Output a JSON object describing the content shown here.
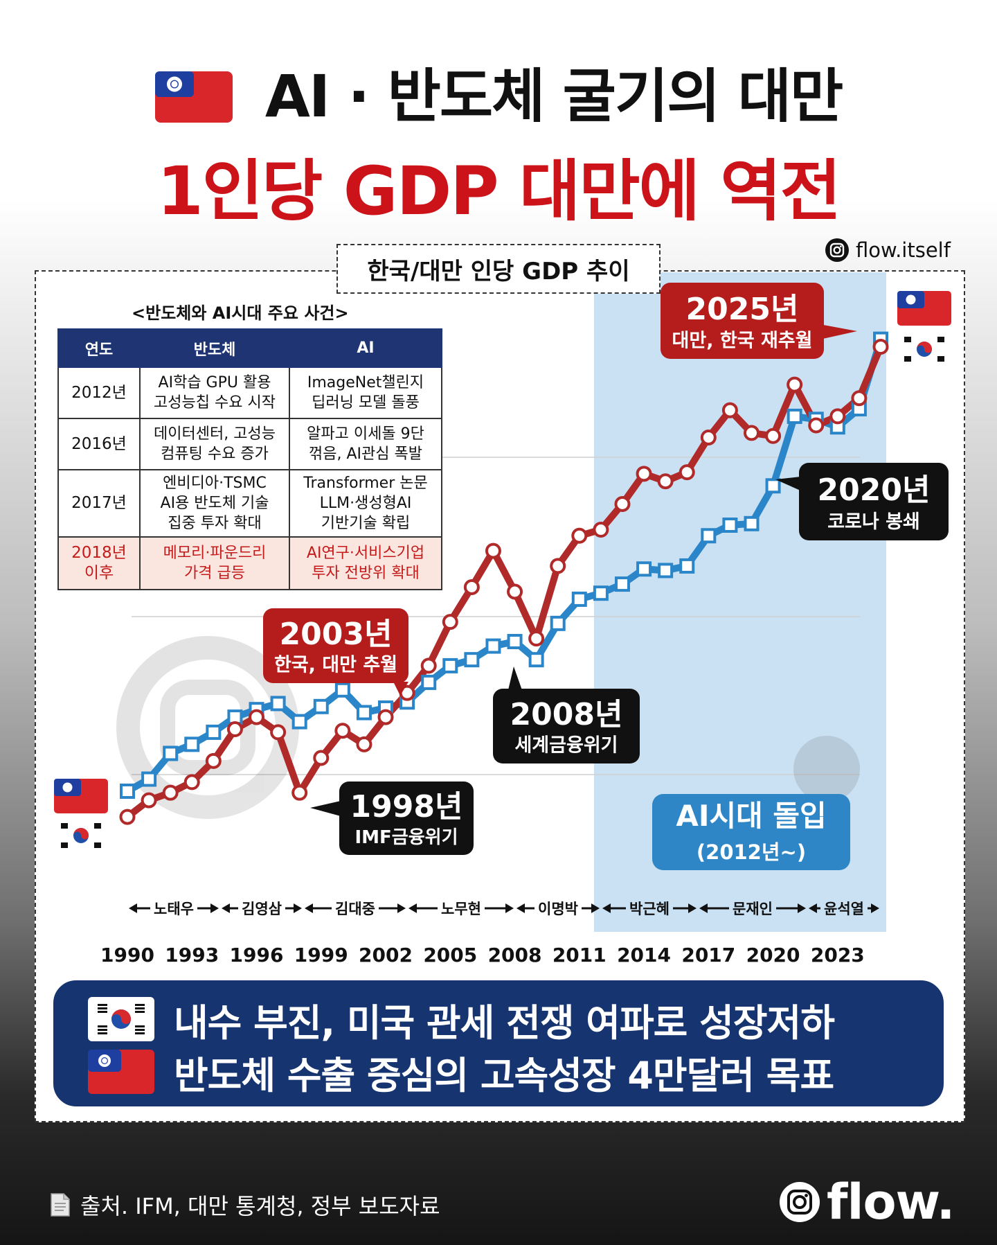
{
  "header": {
    "title_line1": "AI · 반도체 굴기의 대만",
    "title_line2": "1인당 GDP 대만에 역전"
  },
  "social": {
    "handle": "flow.itself"
  },
  "chart_title": "한국/대만 인당 GDP 추이",
  "events_table": {
    "caption": "<반도체와 AI시대 주요 사건>",
    "headers": [
      "연도",
      "반도체",
      "AI"
    ],
    "rows": [
      {
        "year": [
          "2012년"
        ],
        "semi": [
          "AI학습 GPU 활용",
          "고성능칩 수요 시작"
        ],
        "ai": [
          "ImageNet챌린지",
          "딥러닝 모델 돌풍"
        ]
      },
      {
        "year": [
          "2016년"
        ],
        "semi": [
          "데이터센터, 고성능",
          "컴퓨팅 수요 증가"
        ],
        "ai": [
          "알파고 이세돌 9단",
          "꺾음, AI관심 폭발"
        ]
      },
      {
        "year": [
          "2017년"
        ],
        "semi": [
          "엔비디아·TSMC",
          "AI용 반도체 기술",
          "집중 투자 확대"
        ],
        "ai": [
          "Transformer 논문",
          "LLM·생성형AI",
          "기반기술 확립"
        ]
      },
      {
        "year": [
          "2018년",
          "이후"
        ],
        "semi": [
          "메모리·파운드리",
          "가격 급등"
        ],
        "ai": [
          "AI연구·서비스기업",
          "투자 전방위 확대"
        ]
      }
    ]
  },
  "annotations": {
    "y2025": {
      "title": "2025년",
      "sub": "대만, 한국 재추월"
    },
    "y2003": {
      "title": "2003년",
      "sub": "한국, 대만 추월"
    },
    "y2020": {
      "title": "2020년",
      "sub": "코로나 봉쇄"
    },
    "y2008": {
      "title": "2008년",
      "sub": "세계금융위기"
    },
    "y1998": {
      "title": "1998년",
      "sub": "IMF금융위기"
    },
    "ai_era": {
      "title": "AI시대 돌입",
      "sub": "(2012년~)"
    }
  },
  "presidents": [
    "노태우",
    "김영삼",
    "김대중",
    "노무현",
    "이명박",
    "박근혜",
    "문재인",
    "윤석열"
  ],
  "chart_data": {
    "type": "line",
    "title": "한국/대만 인당 GDP 추이",
    "xlabel": "",
    "ylabel": "",
    "x_ticks": [
      1990,
      1993,
      1996,
      1999,
      2002,
      2005,
      2008,
      2011,
      2014,
      2017,
      2020,
      2023
    ],
    "x": [
      1990,
      1991,
      1992,
      1993,
      1994,
      1995,
      1996,
      1997,
      1998,
      1999,
      2000,
      2001,
      2002,
      2003,
      2004,
      2005,
      2006,
      2007,
      2008,
      2009,
      2010,
      2011,
      2012,
      2013,
      2014,
      2015,
      2016,
      2017,
      2018,
      2019,
      2020,
      2021,
      2022,
      2023,
      2024,
      2025
    ],
    "series": [
      {
        "name": "대만",
        "marker": "square",
        "color": "#2a86c8",
        "values": [
          8.2,
          9.0,
          10.7,
          11.3,
          12.1,
          13.1,
          13.6,
          14.0,
          12.8,
          13.8,
          14.9,
          13.4,
          13.7,
          14.1,
          15.4,
          16.5,
          16.9,
          17.8,
          18.1,
          16.9,
          19.3,
          20.9,
          21.3,
          21.9,
          22.9,
          22.8,
          23.1,
          25.1,
          25.8,
          25.9,
          28.4,
          33.0,
          32.8,
          32.3,
          33.5,
          38.1
        ],
        "highlight_range": [
          2012,
          2025
        ]
      },
      {
        "name": "한국",
        "marker": "circle",
        "color": "#b12a2a",
        "values": [
          6.5,
          7.6,
          8.1,
          8.8,
          10.2,
          12.3,
          13.1,
          12.1,
          8.1,
          10.4,
          12.2,
          11.3,
          13.1,
          14.7,
          16.5,
          19.4,
          21.7,
          24.1,
          21.4,
          18.3,
          23.1,
          25.1,
          25.5,
          27.2,
          29.2,
          28.7,
          29.3,
          31.6,
          33.4,
          31.9,
          31.7,
          35.1,
          32.4,
          33.0,
          34.2,
          37.6
        ]
      }
    ],
    "ai_era_start": 2012,
    "grid": true,
    "legend": "flags at left and right ends"
  },
  "bottom_banner": {
    "line1": "내수 부진, 미국 관세 전쟁 여파로 성장저하",
    "line2": "반도체 수출 중심의 고속성장 4만달러 목표"
  },
  "source": "출처. IFM, 대만 통계청, 정부 보도자료",
  "brand": "flow.",
  "colors": {
    "taiwan": "#2a86c8",
    "korea": "#b12a2a",
    "title_red": "#cc1319",
    "navy": "#16346f"
  }
}
